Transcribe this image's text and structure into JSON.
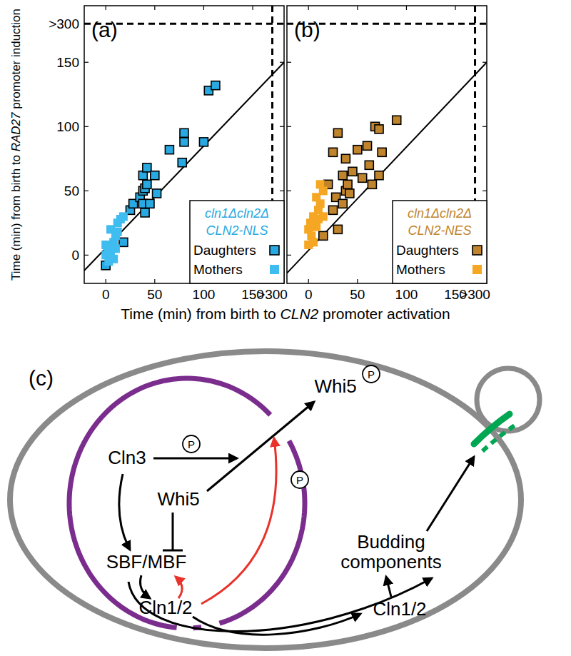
{
  "chart_data": [
    {
      "type": "scatter",
      "title": "(a)",
      "xlabel": "Time (min) from birth to CLN2 promoter activation",
      "ylabel": "Time (min) from birth to RAD27 promoter induction",
      "annotations": [
        "cln1Δcln2Δ",
        "CLN2-NLS"
      ],
      "legend": "lower right",
      "xlim": [
        -22,
        182
      ],
      "ylim": [
        -22,
        194
      ],
      "xticks": [
        0,
        50,
        100,
        150,
        {
          "value": 170,
          "label": ">300"
        }
      ],
      "yticks": [
        0,
        50,
        100,
        150,
        {
          "value": 180,
          "label": ">300"
        }
      ],
      "series": [
        {
          "name": "Daughters",
          "color": "#29a9e1",
          "marker": "square-edged",
          "x": [
            0,
            18,
            25,
            28,
            35,
            38,
            40,
            42,
            38,
            42,
            50,
            40,
            38,
            45,
            65,
            80,
            80,
            78,
            100,
            105,
            112,
            52
          ],
          "values": [
            -8,
            10,
            35,
            40,
            45,
            50,
            52,
            55,
            62,
            68,
            62,
            33,
            40,
            40,
            82,
            88,
            95,
            72,
            88,
            128,
            132,
            48
          ]
        },
        {
          "name": "Mothers",
          "color": "#3fbcf0",
          "marker": "square",
          "x": [
            0,
            2,
            5,
            8,
            10,
            5,
            12,
            15,
            3,
            8,
            10,
            12,
            18,
            0
          ],
          "values": [
            0,
            5,
            2,
            10,
            15,
            20,
            25,
            28,
            -5,
            -3,
            5,
            18,
            30,
            8
          ]
        },
        {
          "type": "line",
          "color": "#000000",
          "x": [
            -22,
            182
          ],
          "values": [
            -12,
            150
          ]
        }
      ]
    },
    {
      "type": "scatter",
      "title": "(b)",
      "annotations": [
        "cln1Δcln2Δ",
        "CLN2-NES"
      ],
      "legend": "lower right",
      "tick_labels": "x",
      "xlim": [
        -22,
        182
      ],
      "ylim": [
        -22,
        194
      ],
      "xticks": [
        0,
        50,
        100,
        150,
        {
          "value": 170,
          "label": ">300"
        }
      ],
      "yticks": [
        0,
        50,
        100,
        150,
        {
          "value": 180,
          "label": ">300"
        }
      ],
      "series": [
        {
          "name": "Daughters",
          "color": "#c0842c",
          "marker": "square-edged",
          "x": [
            15,
            20,
            25,
            28,
            25,
            30,
            30,
            35,
            38,
            38,
            40,
            42,
            45,
            50,
            55,
            60,
            62,
            65,
            68,
            72,
            72,
            75,
            90,
            35
          ],
          "values": [
            15,
            55,
            35,
            45,
            80,
            95,
            20,
            62,
            50,
            75,
            55,
            48,
            65,
            82,
            60,
            85,
            70,
            55,
            100,
            98,
            62,
            80,
            105,
            40
          ]
        },
        {
          "name": "Mothers",
          "color": "#f5a623",
          "marker": "square",
          "x": [
            0,
            2,
            5,
            3,
            8,
            10,
            12,
            5,
            15,
            0,
            8,
            10,
            12,
            15
          ],
          "values": [
            20,
            25,
            30,
            15,
            45,
            35,
            40,
            10,
            50,
            8,
            22,
            28,
            55,
            30
          ]
        },
        {
          "type": "line",
          "color": "#000000",
          "x": [
            -22,
            182
          ],
          "values": [
            -14,
            150
          ]
        }
      ]
    }
  ],
  "diagram": {
    "label": "(c)",
    "phospho": "P",
    "nodes": {
      "cln3": "Cln3",
      "whi5": "Whi5",
      "sbf_mbf": "SBF/MBF",
      "cln12_nuclear": "Cln1/2",
      "whi5_p": "Whi5",
      "budding": [
        "Budding",
        "components"
      ],
      "cln12_cyto": "Cln1/2"
    }
  }
}
